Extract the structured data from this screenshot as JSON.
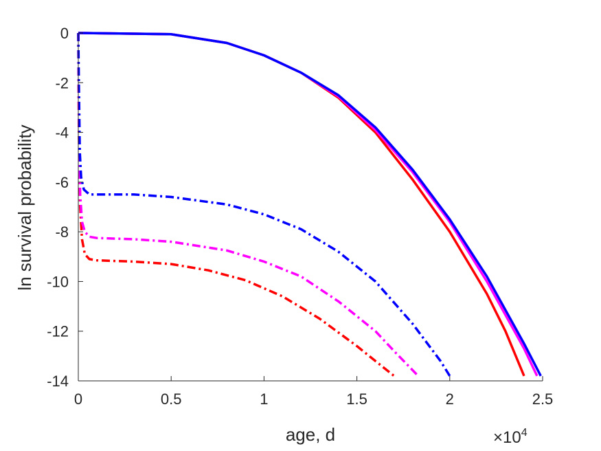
{
  "chart_data": {
    "type": "line",
    "title": "",
    "xlabel": "age, d",
    "ylabel": "ln survival probability",
    "x_multiplier": {
      "base": "×10",
      "exponent": "4"
    },
    "xlim": [
      0,
      25000
    ],
    "ylim": [
      -14,
      0
    ],
    "x_ticks": [
      0,
      5000,
      10000,
      15000,
      20000,
      25000
    ],
    "x_tick_labels": [
      "0",
      "0.5",
      "1",
      "1.5",
      "2",
      "2.5"
    ],
    "y_ticks": [
      0,
      -2,
      -4,
      -6,
      -8,
      -10,
      -12,
      -14
    ],
    "y_tick_labels": [
      "0",
      "-2",
      "-4",
      "-6",
      "-8",
      "-10",
      "-12",
      "-14"
    ],
    "grid": false,
    "legend": "none",
    "series": [
      {
        "color": "#ff0000",
        "style": "solid",
        "points": [
          [
            0,
            0
          ],
          [
            5000,
            -0.05
          ],
          [
            8000,
            -0.4
          ],
          [
            10000,
            -0.9
          ],
          [
            12000,
            -1.6
          ],
          [
            14000,
            -2.6
          ],
          [
            16000,
            -4.0
          ],
          [
            18000,
            -5.9
          ],
          [
            20000,
            -8.0
          ],
          [
            22000,
            -10.5
          ],
          [
            23000,
            -12.0
          ],
          [
            24000,
            -13.8
          ]
        ]
      },
      {
        "color": "#ff00ff",
        "style": "solid",
        "points": [
          [
            0,
            0
          ],
          [
            5000,
            -0.05
          ],
          [
            8000,
            -0.4
          ],
          [
            10000,
            -0.9
          ],
          [
            12000,
            -1.6
          ],
          [
            14000,
            -2.55
          ],
          [
            16000,
            -3.9
          ],
          [
            18000,
            -5.6
          ],
          [
            20000,
            -7.6
          ],
          [
            22000,
            -10.0
          ],
          [
            24000,
            -12.7
          ],
          [
            24700,
            -13.8
          ]
        ]
      },
      {
        "color": "#0000ff",
        "style": "solid",
        "points": [
          [
            0,
            0
          ],
          [
            5000,
            -0.05
          ],
          [
            8000,
            -0.4
          ],
          [
            10000,
            -0.9
          ],
          [
            12000,
            -1.6
          ],
          [
            14000,
            -2.5
          ],
          [
            16000,
            -3.8
          ],
          [
            18000,
            -5.5
          ],
          [
            20000,
            -7.5
          ],
          [
            22000,
            -9.8
          ],
          [
            24000,
            -12.5
          ],
          [
            24900,
            -13.8
          ]
        ]
      },
      {
        "color": "#ff0000",
        "style": "dashdot",
        "points": [
          [
            0,
            0
          ],
          [
            30,
            -4.0
          ],
          [
            100,
            -7.0
          ],
          [
            200,
            -8.3
          ],
          [
            350,
            -8.9
          ],
          [
            600,
            -9.1
          ],
          [
            1000,
            -9.15
          ],
          [
            3000,
            -9.2
          ],
          [
            5000,
            -9.3
          ],
          [
            7000,
            -9.55
          ],
          [
            9000,
            -9.95
          ],
          [
            11000,
            -10.6
          ],
          [
            13000,
            -11.5
          ],
          [
            15000,
            -12.6
          ],
          [
            16000,
            -13.2
          ],
          [
            17000,
            -13.8
          ]
        ]
      },
      {
        "color": "#ff00ff",
        "style": "dashdot",
        "points": [
          [
            0,
            0
          ],
          [
            30,
            -3.5
          ],
          [
            100,
            -6.5
          ],
          [
            200,
            -7.6
          ],
          [
            350,
            -8.0
          ],
          [
            600,
            -8.2
          ],
          [
            1000,
            -8.25
          ],
          [
            3000,
            -8.3
          ],
          [
            5000,
            -8.4
          ],
          [
            8000,
            -8.75
          ],
          [
            10000,
            -9.2
          ],
          [
            12000,
            -9.8
          ],
          [
            14000,
            -10.8
          ],
          [
            16000,
            -12.0
          ],
          [
            17000,
            -12.8
          ],
          [
            18300,
            -13.8
          ]
        ]
      },
      {
        "color": "#0000ff",
        "style": "dashdot",
        "points": [
          [
            0,
            0
          ],
          [
            30,
            -2.0
          ],
          [
            80,
            -4.8
          ],
          [
            150,
            -5.8
          ],
          [
            300,
            -6.3
          ],
          [
            600,
            -6.5
          ],
          [
            1000,
            -6.5
          ],
          [
            3000,
            -6.5
          ],
          [
            5000,
            -6.6
          ],
          [
            8000,
            -6.9
          ],
          [
            10000,
            -7.3
          ],
          [
            12000,
            -7.9
          ],
          [
            14000,
            -8.8
          ],
          [
            16000,
            -10.0
          ],
          [
            18000,
            -11.7
          ],
          [
            19500,
            -13.2
          ],
          [
            20000,
            -13.8
          ]
        ]
      }
    ]
  }
}
